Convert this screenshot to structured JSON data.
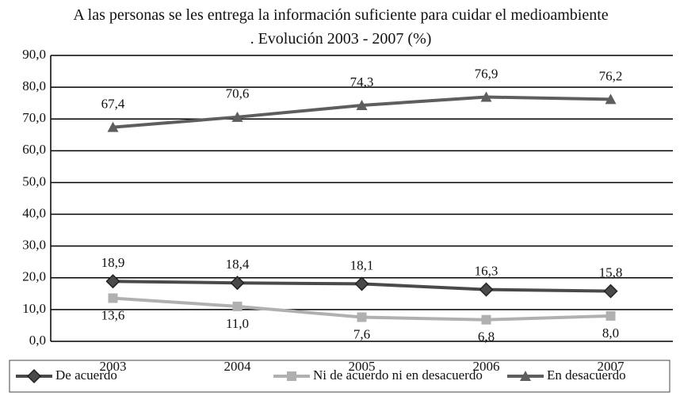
{
  "chart_data": {
    "type": "line",
    "title": "A las personas se les entrega la información suficiente para cuidar el medioambiente . Evolución 2003 - 2007 (%)",
    "categories": [
      "2003",
      "2004",
      "2005",
      "2006",
      "2007"
    ],
    "series": [
      {
        "name": "De acuerdo",
        "color": "#4a4a4a",
        "marker": "diamond",
        "label_position": "above",
        "values": [
          18.9,
          18.4,
          18.1,
          16.3,
          15.8
        ],
        "value_labels": [
          "18,9",
          "18,4",
          "18,1",
          "16,3",
          "15,8"
        ]
      },
      {
        "name": "Ni de acuerdo ni en desacuerdo",
        "color": "#b0b0b0",
        "marker": "square",
        "label_position": "below",
        "values": [
          13.6,
          11.0,
          7.6,
          6.8,
          8.0
        ],
        "value_labels": [
          "13,6",
          "11,0",
          "7,6",
          "6,8",
          "8,0"
        ]
      },
      {
        "name": "En desacuerdo",
        "color": "#5e5e5e",
        "marker": "triangle",
        "label_position": "above",
        "values": [
          67.4,
          70.6,
          74.3,
          76.9,
          76.2
        ],
        "value_labels": [
          "67,4",
          "70,6",
          "74,3",
          "76,9",
          "76,2"
        ]
      }
    ],
    "ylim": [
      0,
      90
    ],
    "yticks": [
      {
        "value": 0,
        "label": "0,0"
      },
      {
        "value": 10,
        "label": "10,0"
      },
      {
        "value": 20,
        "label": "20,0"
      },
      {
        "value": 30,
        "label": "30,0"
      },
      {
        "value": 40,
        "label": "40,0"
      },
      {
        "value": 50,
        "label": "50,0"
      },
      {
        "value": 60,
        "label": "60,0"
      },
      {
        "value": 70,
        "label": "70,0"
      },
      {
        "value": 80,
        "label": "80,0"
      },
      {
        "value": 90,
        "label": "90,0"
      }
    ],
    "grid": true,
    "legend": "bottom"
  }
}
